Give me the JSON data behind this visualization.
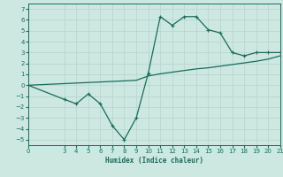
{
  "xlabel": "Humidex (Indice chaleur)",
  "background_color": "#cce8e0",
  "line_color": "#1a6b5a",
  "grid_color": "#b8d8d0",
  "curve1_x": [
    0,
    3,
    4,
    5,
    6,
    7,
    8,
    9,
    10,
    11,
    12,
    13,
    14,
    15,
    16,
    17,
    18,
    19,
    20,
    21
  ],
  "curve1_y": [
    0,
    -1.3,
    -1.7,
    -0.8,
    -1.7,
    -3.7,
    -5.0,
    -3.0,
    1.1,
    6.3,
    5.5,
    6.3,
    6.3,
    5.1,
    4.8,
    3.0,
    2.7,
    3.0,
    3.0,
    3.0
  ],
  "curve2_x": [
    0,
    3,
    4,
    5,
    6,
    7,
    8,
    9,
    10,
    11,
    12,
    13,
    14,
    15,
    16,
    17,
    18,
    19,
    20,
    21
  ],
  "curve2_y": [
    0,
    0.15,
    0.2,
    0.25,
    0.3,
    0.35,
    0.4,
    0.45,
    0.85,
    1.05,
    1.2,
    1.35,
    1.5,
    1.6,
    1.75,
    1.9,
    2.05,
    2.2,
    2.4,
    2.7
  ],
  "xlim": [
    0,
    21
  ],
  "ylim": [
    -5.5,
    7.5
  ],
  "yticks": [
    -5,
    -4,
    -3,
    -2,
    -1,
    0,
    1,
    2,
    3,
    4,
    5,
    6,
    7
  ],
  "xticks": [
    0,
    3,
    4,
    5,
    6,
    7,
    8,
    9,
    10,
    11,
    12,
    13,
    14,
    15,
    16,
    17,
    18,
    19,
    20,
    21
  ],
  "tick_fontsize": 5,
  "xlabel_fontsize": 5.5
}
